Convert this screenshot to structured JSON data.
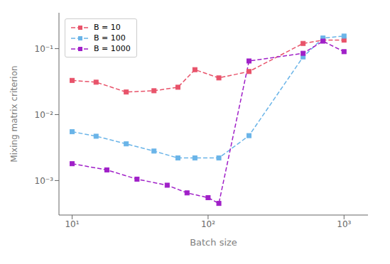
{
  "chart_data": {
    "type": "line",
    "xlabel": "Batch size",
    "ylabel": "Mixing matrix criterion",
    "log": true,
    "grid": false,
    "legend": "upper left",
    "marker": "square",
    "line_style": "dashed",
    "xlim": [
      8,
      1500
    ],
    "ylim": [
      0.0003,
      0.35
    ],
    "xticks": [
      {
        "value": 10,
        "label": "10¹"
      },
      {
        "value": 100,
        "label": "10²"
      },
      {
        "value": 1000,
        "label": "10³"
      }
    ],
    "yticks": [
      {
        "value": 0.001,
        "label": "10⁻³"
      },
      {
        "value": 0.01,
        "label": "10⁻²"
      },
      {
        "value": 0.1,
        "label": "10⁻¹"
      }
    ],
    "series": [
      {
        "name": "B = 10",
        "color": "#e8536a",
        "x": [
          10,
          15,
          25,
          40,
          60,
          80,
          120,
          200,
          500,
          700,
          1000
        ],
        "values": [
          0.033,
          0.031,
          0.022,
          0.023,
          0.026,
          0.048,
          0.036,
          0.045,
          0.12,
          0.135,
          0.135
        ]
      },
      {
        "name": "B = 100",
        "color": "#6ab4e8",
        "x": [
          10,
          15,
          25,
          40,
          60,
          80,
          120,
          200,
          500,
          700,
          1000
        ],
        "values": [
          0.0055,
          0.0047,
          0.0036,
          0.0028,
          0.0022,
          0.0022,
          0.0022,
          0.0048,
          0.075,
          0.145,
          0.155
        ]
      },
      {
        "name": "B = 1000",
        "color": "#a020c8",
        "x": [
          10,
          18,
          30,
          50,
          70,
          100,
          120,
          200,
          500,
          700,
          1000
        ],
        "values": [
          0.0018,
          0.00145,
          0.00105,
          0.00085,
          0.00065,
          0.00055,
          0.00045,
          0.065,
          0.085,
          0.13,
          0.09
        ]
      }
    ]
  }
}
